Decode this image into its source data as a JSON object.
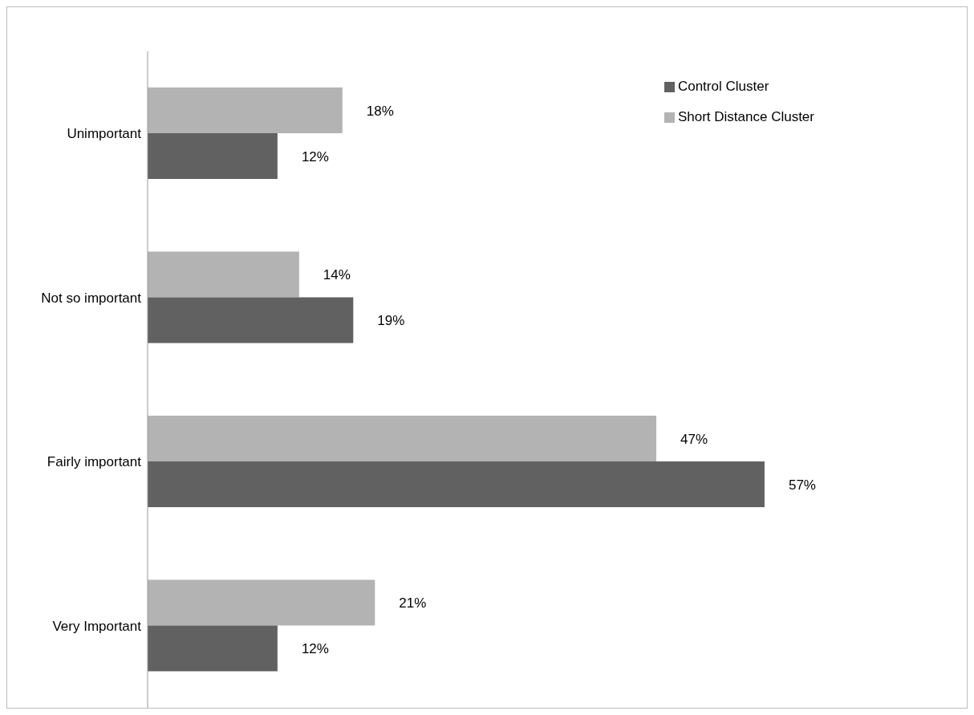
{
  "chart_data": {
    "type": "bar",
    "orientation": "horizontal",
    "categories": [
      "Unimportant",
      "Not so important",
      "Fairly important",
      "Very Important"
    ],
    "series": [
      {
        "name": "Short Distance Cluster",
        "color": "#b3b3b3",
        "values": [
          18,
          14,
          47,
          21
        ],
        "value_labels": [
          "18%",
          "14%",
          "47%",
          "21%"
        ]
      },
      {
        "name": "Control Cluster",
        "color": "#616161",
        "values": [
          12,
          19,
          57,
          12
        ],
        "value_labels": [
          "12%",
          "19%",
          "57%",
          "12%"
        ]
      }
    ],
    "legend": "top right",
    "grid": false,
    "tick_labels": "y"
  }
}
